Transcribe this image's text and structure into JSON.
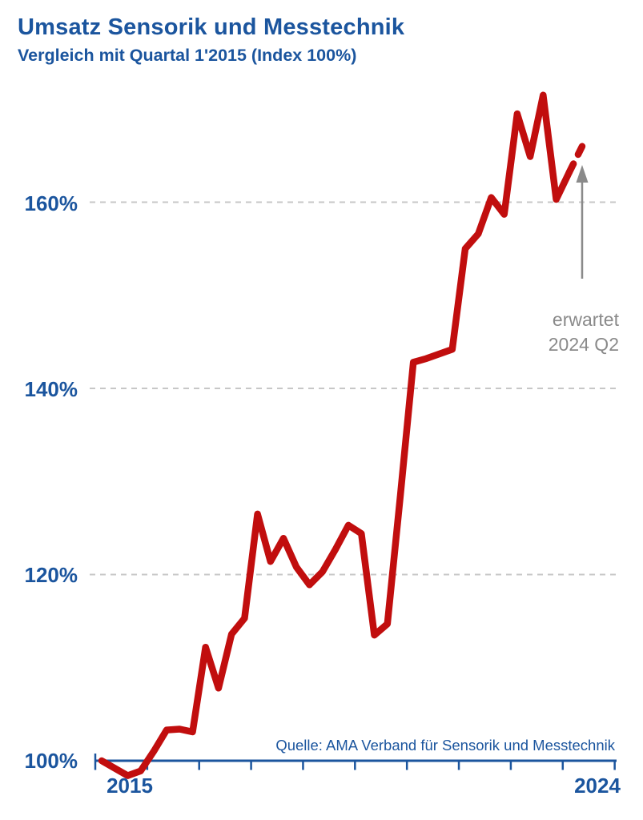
{
  "header": {
    "title": "Umsatz Sensorik und Messtechnik",
    "subtitle": "Vergleich mit Quartal 1'2015 (Index 100%)"
  },
  "source_note": "Quelle: AMA Verband für Sensorik und Messtechnik",
  "annotation": {
    "line1": "erwartet",
    "line2": "2024 Q2"
  },
  "colors": {
    "blue": "#1b559e",
    "red": "#c10e0e",
    "grid_gray": "#c7c7c7",
    "annotation_gray": "#8a8a8a"
  },
  "chart_data": {
    "type": "line",
    "title": "Umsatz Sensorik und Messtechnik",
    "subtitle": "Vergleich mit Quartal 1'2015 (Index 100%)",
    "unit": "Index, Quartal 1'2015 = 100%",
    "legend": "none",
    "grid": "horizontal dashed at 120/140/160, solid axis at 100",
    "ylim": [
      97,
      173
    ],
    "y_gridlines": [
      120,
      140,
      160
    ],
    "y_tick_labels": [
      "160%",
      "140%",
      "120%",
      "100%"
    ],
    "x_axis_year_labels": [
      "2015",
      "2024"
    ],
    "x_axis_tick_years": [
      2015,
      2016,
      2017,
      2018,
      2019,
      2020,
      2021,
      2022,
      2023,
      2024,
      2025
    ],
    "quarters": [
      "2015 Q1",
      "2015 Q2",
      "2015 Q3",
      "2015 Q4",
      "2016 Q1",
      "2016 Q2",
      "2016 Q3",
      "2016 Q4",
      "2017 Q1",
      "2017 Q2",
      "2017 Q3",
      "2017 Q4",
      "2018 Q1",
      "2018 Q2",
      "2018 Q3",
      "2018 Q4",
      "2019 Q1",
      "2019 Q2",
      "2019 Q3",
      "2019 Q4",
      "2020 Q1",
      "2020 Q2",
      "2020 Q3",
      "2020 Q4",
      "2021 Q1",
      "2021 Q2",
      "2021 Q3",
      "2021 Q4",
      "2022 Q1",
      "2022 Q2",
      "2022 Q3",
      "2022 Q4",
      "2023 Q1",
      "2023 Q2",
      "2023 Q3",
      "2023 Q4",
      "2024 Q1"
    ],
    "values": [
      100.0,
      99.2,
      98.4,
      98.9,
      101.0,
      103.3,
      103.4,
      103.1,
      112.2,
      107.8,
      113.6,
      115.3,
      126.5,
      121.4,
      123.9,
      120.8,
      118.9,
      120.3,
      122.7,
      125.3,
      124.4,
      113.5,
      114.7,
      128.5,
      142.8,
      143.2,
      143.7,
      144.2,
      155.0,
      156.6,
      160.5,
      158.7,
      169.5,
      164.9,
      171.5,
      160.3,
      163.2
    ],
    "expected": {
      "quarter": "2024 Q2",
      "value": 166.0,
      "style": "dashed",
      "label": "erwartet 2024 Q2"
    }
  }
}
